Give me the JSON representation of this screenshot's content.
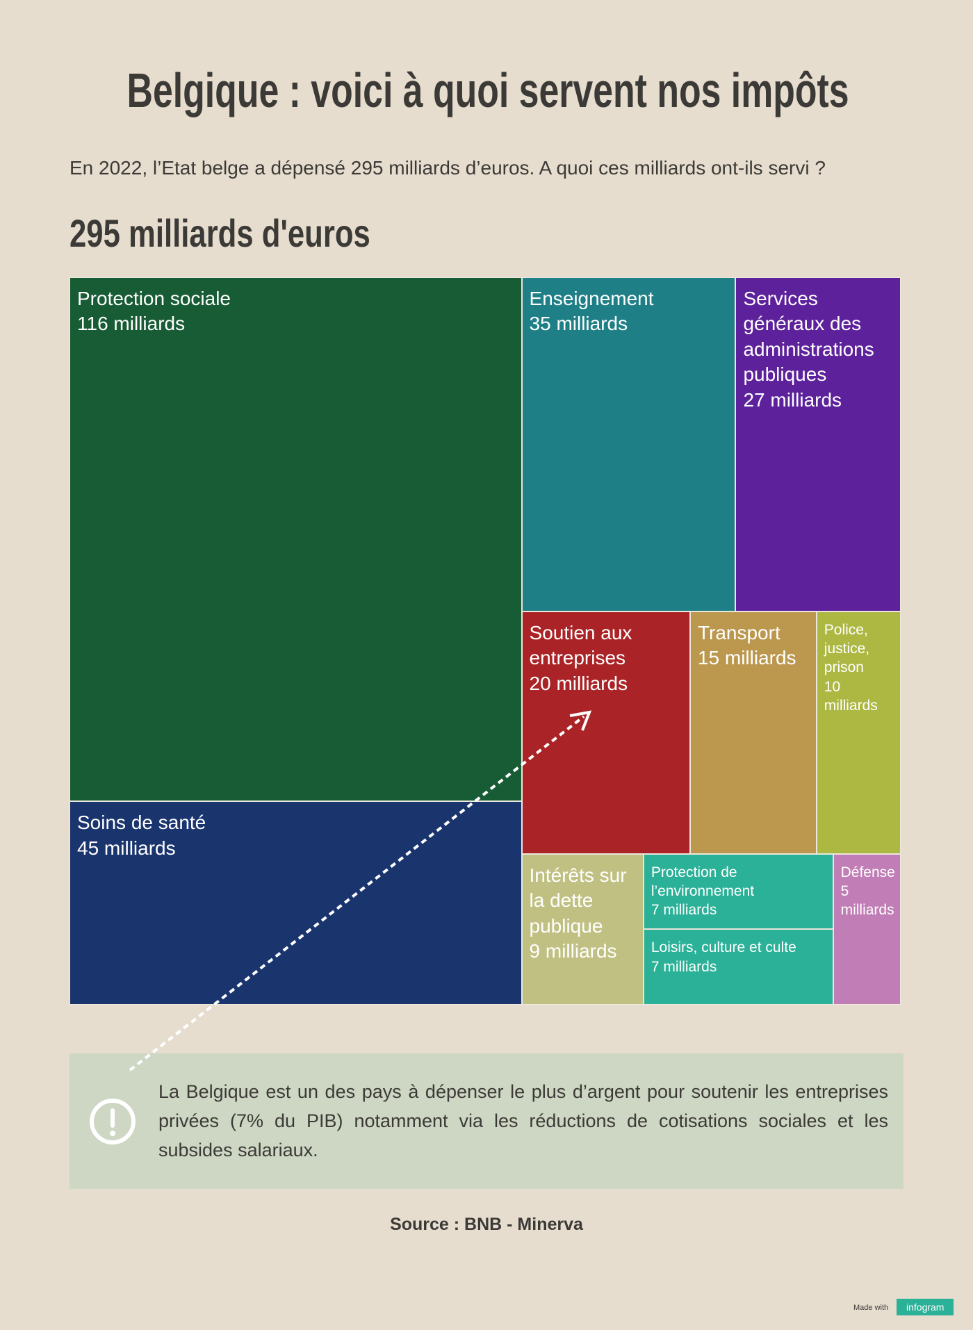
{
  "chart_data": {
    "type": "treemap",
    "title": "Belgique : voici à quoi servent nos impôts",
    "subtitle": "En 2022, l’Etat belge a dépensé 295 milliards d’euros. A quoi ces milliards ont-ils servi ?",
    "heading": "295 milliards d'euros",
    "categories": [
      "Protection sociale",
      "Soins de santé",
      "Enseignement",
      "Services généraux des administrations publiques",
      "Soutien aux entreprises",
      "Transport",
      "Police, justice, prison",
      "Intérêts sur la dette publique",
      "Protection de l’environnement",
      "Loisirs, culture et culte",
      "Défense"
    ],
    "values": [
      116,
      45,
      35,
      27,
      20,
      15,
      10,
      9,
      7,
      7,
      5
    ],
    "value_labels": [
      "116 milliards",
      "45 milliards",
      "35 milliards",
      "27 milliards",
      "20 milliards",
      "15 milliards",
      "10 milliards",
      "9 milliards",
      "7 milliards",
      "7 milliards",
      "5 milliards"
    ],
    "colors": [
      "#175c34",
      "#1a346e",
      "#1f7f86",
      "#5c219b",
      "#aa2427",
      "#bc984f",
      "#adb843",
      "#c1c083",
      "#2bb197",
      "#2bb197",
      "#c17eb6"
    ],
    "note": "La Belgique est un des pays à dépenser le plus d’argent pour soutenir les entreprises privées (7% du PIB) notamment via les réductions de cotisations sociales et les subsides salariaux.",
    "source": "Source : BNB - Minerva",
    "footer": {
      "made_with": "Made with",
      "brand": "infogram"
    }
  }
}
